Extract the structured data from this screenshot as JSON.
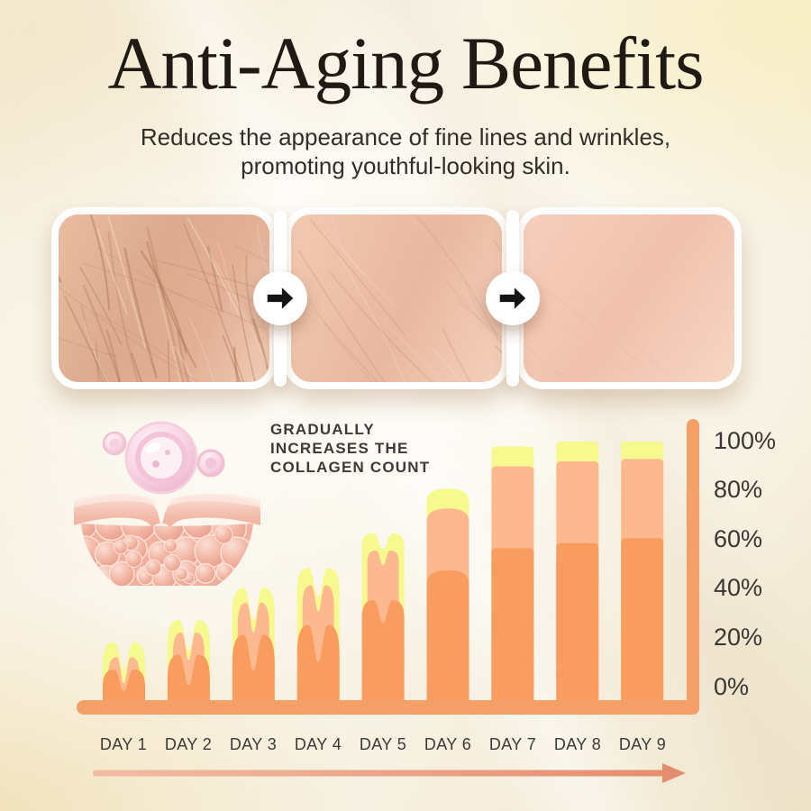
{
  "header": {
    "title": "Anti-Aging Benefits",
    "subtitle_line1": "Reduces the appearance of fine lines and wrinkles,",
    "subtitle_line2": "promoting youthful-looking skin."
  },
  "transformation": {
    "stages": [
      "deeply wrinkled skin",
      "reduced fine lines",
      "smooth youthful skin"
    ],
    "arrow_icon": "arrow-right"
  },
  "chart_data": {
    "type": "bar",
    "title": "GRADUALLY INCREASES THE COLLAGEN COUNT",
    "annotation_lines": [
      "GRADUALLY",
      "INCREASES THE",
      "COLLAGEN COUNT"
    ],
    "categories": [
      "DAY 1",
      "DAY 2",
      "DAY 3",
      "DAY 4",
      "DAY 5",
      "DAY 6",
      "DAY 7",
      "DAY 8",
      "DAY 9"
    ],
    "series": [
      {
        "name": "collagen count - front layer",
        "color": "#F99C60",
        "values": [
          8,
          14,
          22,
          26,
          36,
          48,
          57,
          59,
          61
        ]
      },
      {
        "name": "collagen count - middle layer",
        "color": "#FCB990",
        "values": [
          13,
          23,
          35,
          42,
          56,
          73,
          90,
          92,
          93
        ]
      },
      {
        "name": "collagen count - top layer",
        "color": "#F5F98E",
        "values": [
          19,
          28,
          41,
          49,
          63,
          81,
          98,
          100,
          100
        ]
      }
    ],
    "y_ticks": [
      "100%",
      "80%",
      "60%",
      "40%",
      "20%",
      "0%"
    ],
    "ylim": [
      0,
      100
    ],
    "grid": false,
    "legend": false,
    "axis_color": "#F49E68",
    "bar_top_styles": [
      "wavy",
      "wavy",
      "wavy",
      "wavy",
      "wavy",
      "dome",
      "flat",
      "flat",
      "flat"
    ],
    "x_axis_arrow": "arrow-right"
  },
  "icons": {
    "stage_arrow": "arrow-right",
    "timeline_arrow": "arrow-right-long",
    "illustration": "serum-drop-collagen-skin-layer"
  },
  "colors": {
    "title_text": "#201A15",
    "body_text": "#312E29",
    "label_text": "#3C3A37",
    "background_cream": "#F7F1E3",
    "timeline_from": "#F2BCA4",
    "timeline_to": "#E58E6E"
  }
}
